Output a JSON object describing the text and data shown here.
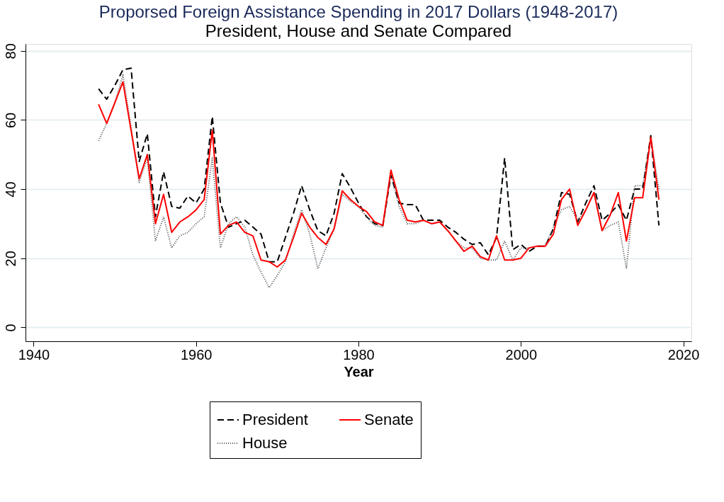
{
  "chart_data": {
    "type": "line",
    "title": "Proporsed Foreign Assistance Spending in 2017 Dollars  (1948-2017)",
    "subtitle": "President, House and Senate Compared",
    "xlabel": "Year",
    "x": [
      1948,
      1949,
      1950,
      1951,
      1952,
      1953,
      1954,
      1955,
      1956,
      1957,
      1958,
      1959,
      1960,
      1961,
      1962,
      1963,
      1964,
      1965,
      1966,
      1967,
      1968,
      1969,
      1970,
      1971,
      1972,
      1973,
      1974,
      1975,
      1976,
      1977,
      1978,
      1979,
      1980,
      1981,
      1982,
      1983,
      1984,
      1985,
      1986,
      1987,
      1988,
      1989,
      1990,
      1991,
      1992,
      1993,
      1994,
      1995,
      1996,
      1997,
      1998,
      1999,
      2000,
      2001,
      2002,
      2003,
      2004,
      2005,
      2006,
      2007,
      2008,
      2009,
      2010,
      2011,
      2012,
      2013,
      2014,
      2015,
      2016,
      2017
    ],
    "series": [
      {
        "name": "President",
        "color": "#000000",
        "line_style": "dashed",
        "values": [
          69,
          66,
          70,
          74.5,
          75,
          48,
          56,
          32,
          45,
          35,
          34.5,
          38,
          36,
          40,
          61,
          36,
          29,
          30,
          31,
          29,
          27,
          19,
          19,
          26,
          33,
          41,
          34,
          28,
          26.5,
          33,
          44.5,
          40.5,
          36,
          32,
          30,
          29.5,
          44,
          36,
          35.5,
          35.5,
          31,
          31,
          31,
          29,
          27.5,
          25.5,
          24,
          24.5,
          21,
          26,
          49,
          22.5,
          24,
          22,
          23.5,
          23.5,
          28.5,
          39,
          38.5,
          30.5,
          36,
          41,
          31,
          33,
          35.5,
          31,
          40,
          40,
          55.5,
          29.5
        ]
      },
      {
        "name": "House",
        "color": "#555555",
        "line_style": "dotted",
        "values": [
          54,
          59,
          65,
          73,
          58,
          42,
          49,
          25,
          32,
          23,
          26.5,
          27.5,
          30,
          32,
          49,
          23,
          30,
          32,
          29,
          21,
          16,
          11.5,
          15,
          19,
          27,
          34,
          27,
          17,
          23,
          28.5,
          38.5,
          36.5,
          35,
          32,
          29.5,
          29,
          44.5,
          35,
          30,
          30,
          31,
          30,
          30.5,
          28,
          25,
          23,
          23,
          20,
          19.5,
          19.5,
          25,
          19.5,
          23,
          23,
          23.5,
          23.5,
          29,
          34,
          35,
          31,
          34,
          39,
          28,
          29.5,
          30.5,
          17,
          41,
          41,
          55,
          40
        ]
      },
      {
        "name": "Senate",
        "color": "#ff0000",
        "line_style": "solid",
        "values": [
          64.5,
          59,
          65,
          71,
          57,
          43,
          50,
          30,
          38.5,
          27.5,
          30.5,
          32,
          34,
          37,
          57,
          27,
          29.5,
          30.5,
          27.5,
          26.5,
          19.5,
          19,
          17.5,
          19.5,
          26,
          33,
          29,
          26,
          24,
          28.5,
          39.5,
          37,
          35,
          33.5,
          30.5,
          29.5,
          45.5,
          37,
          31,
          30.5,
          31,
          30,
          30.5,
          28,
          25,
          22,
          23.5,
          20.5,
          19.5,
          26.5,
          19.5,
          19.5,
          20,
          23,
          23.5,
          23.5,
          27,
          37,
          40,
          29.5,
          34,
          39,
          28,
          32.5,
          39,
          25,
          37.5,
          37.5,
          55,
          37
        ]
      }
    ],
    "xlim": [
      1939,
      2021
    ],
    "xticks": [
      1940,
      1960,
      1980,
      2000,
      2020
    ],
    "ylim": [
      -4,
      82
    ],
    "yticks": [
      0,
      20,
      40,
      60,
      80
    ],
    "grid": "y",
    "legend": "bottom",
    "marker": "none"
  }
}
